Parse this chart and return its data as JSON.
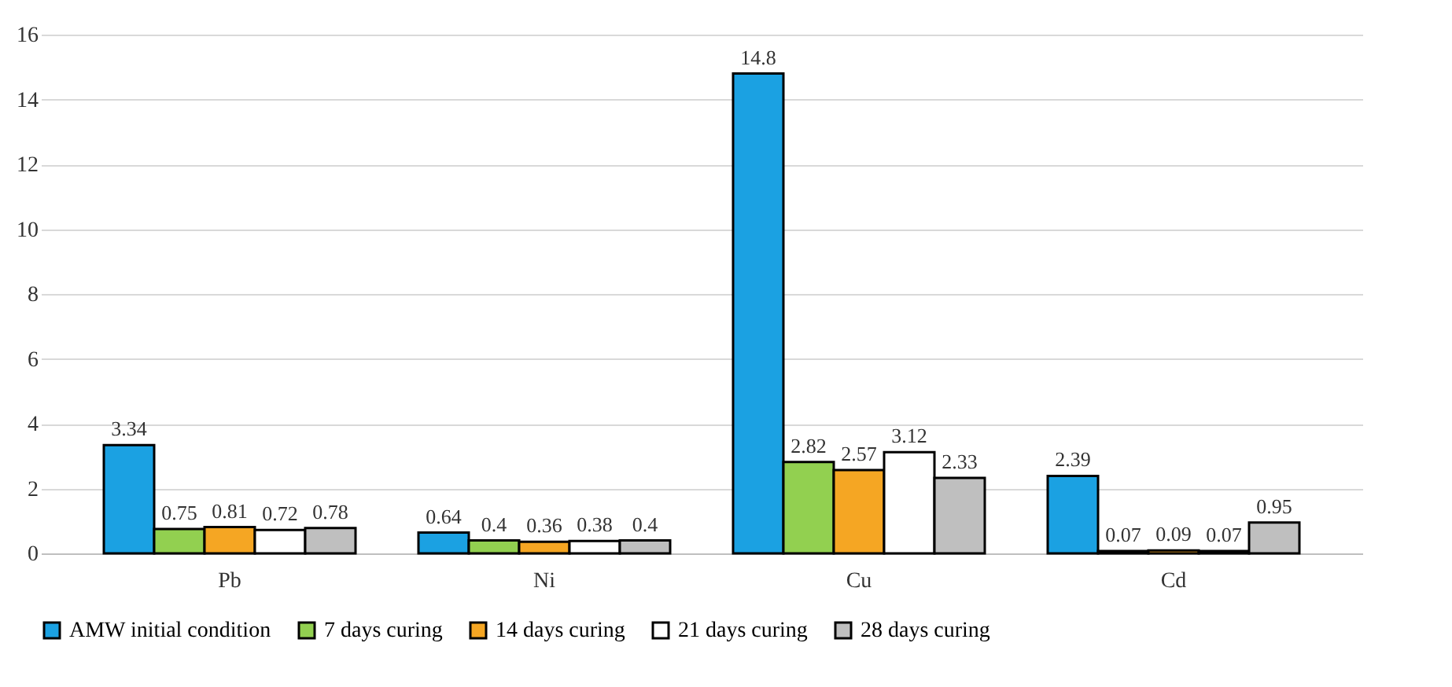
{
  "chart_data": {
    "type": "bar",
    "categories": [
      "Pb",
      "Ni",
      "Cu",
      "Cd"
    ],
    "series": [
      {
        "name": "AMW initial condition",
        "color": "#1ba1e2",
        "values": [
          3.34,
          0.64,
          14.8,
          2.39
        ]
      },
      {
        "name": "7 days curing",
        "color": "#92d050",
        "values": [
          0.75,
          0.4,
          2.82,
          0.07
        ]
      },
      {
        "name": "14 days curing",
        "color": "#f5a623",
        "values": [
          0.81,
          0.36,
          2.57,
          0.09
        ]
      },
      {
        "name": "21 days curing",
        "color": "#ffffff",
        "values": [
          0.72,
          0.38,
          3.12,
          0.07
        ]
      },
      {
        "name": "28 days curing",
        "color": "#bfbfbf",
        "values": [
          0.78,
          0.4,
          2.33,
          0.95
        ]
      }
    ],
    "ylim": [
      0,
      16
    ],
    "yticks": [
      0,
      2,
      4,
      6,
      8,
      10,
      12,
      14,
      16
    ],
    "grid": "y",
    "legend": "bottom",
    "data_labels": true
  }
}
